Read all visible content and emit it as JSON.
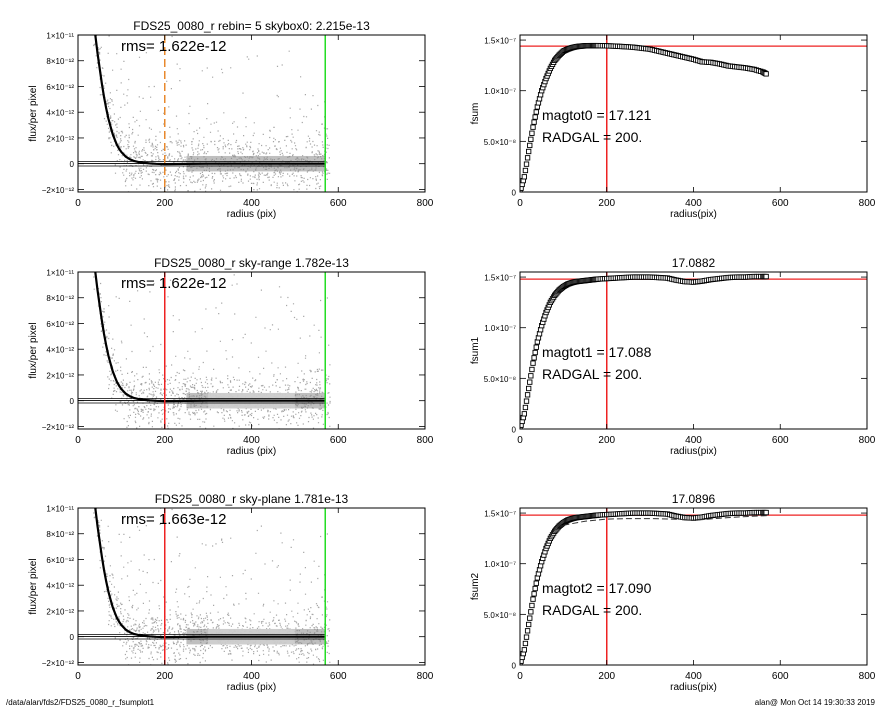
{
  "chart_data": [
    {
      "type": "scatter",
      "title": "FDS25_0080_r rebin= 5    skybox0:  2.215e-13",
      "xlabel": "radius (pix)",
      "ylabel": "flux/per pixel",
      "xlim": [
        0,
        800
      ],
      "ylim": [
        -2.2e-12,
        1e-11
      ],
      "xticks": [
        0,
        200,
        400,
        600,
        800
      ],
      "xticklabels": [
        "0",
        "200",
        "400",
        "600",
        "800"
      ],
      "yticks": [
        -2e-12,
        0,
        2e-12,
        4e-12,
        6e-12,
        8e-12,
        1e-11
      ],
      "yticklabels": [
        "−2×10⁻¹²",
        "0",
        "2×10⁻¹²",
        "4×10⁻¹²",
        "6×10⁻¹²",
        "8×10⁻¹²",
        "1×10⁻¹¹"
      ],
      "annotations": [
        "rms= 1.622e-12"
      ],
      "vlines": [
        {
          "x": 200,
          "color": "#e8892d",
          "style": "dashed"
        },
        {
          "x": 570,
          "color": "#22dd22",
          "style": "solid"
        }
      ],
      "hlines": [
        1.8e-13,
        1e-14,
        -1.8e-13
      ],
      "profile": {
        "x": [
          40,
          45,
          50,
          55,
          60,
          65,
          70,
          75,
          80,
          85,
          90,
          95,
          100,
          110,
          120,
          130,
          140,
          150,
          165,
          180,
          200,
          250,
          300,
          400,
          500,
          570
        ],
        "y": [
          1e-11,
          8.6e-12,
          7.4e-12,
          6.2e-12,
          5.2e-12,
          4.3e-12,
          3.5e-12,
          2.9e-12,
          2.3e-12,
          1.85e-12,
          1.45e-12,
          1.15e-12,
          9e-13,
          5.5e-13,
          3.3e-13,
          2e-13,
          1.2e-13,
          7e-14,
          2e-14,
          -1e-14,
          -3e-14,
          -2e-14,
          0,
          0,
          0,
          0
        ]
      }
    },
    {
      "type": "line",
      "title": "",
      "xlabel": "radius(pix)",
      "ylabel": "fsum",
      "xlim": [
        0,
        800
      ],
      "ylim": [
        0,
        1.55e-07
      ],
      "xticks": [
        0,
        200,
        400,
        600,
        800
      ],
      "xticklabels": [
        "0",
        "200",
        "400",
        "600",
        "800"
      ],
      "yticks": [
        0,
        5e-08,
        1e-07,
        1.5e-07
      ],
      "yticklabels": [
        "0",
        "5.0×10⁻⁸",
        "1.0×10⁻⁷",
        "1.5×10⁻⁷"
      ],
      "annotations": [
        "magtot0 =  17.121",
        "RADGAL =    200."
      ],
      "vlines": [
        {
          "x": 200,
          "color": "#ee2222",
          "style": "solid"
        }
      ],
      "hlines": [
        {
          "y": 1.44e-07,
          "color": "#ee2222"
        }
      ],
      "series": [
        {
          "marker": "square",
          "x": [
            0,
            10,
            20,
            30,
            40,
            50,
            60,
            70,
            80,
            90,
            100,
            110,
            120,
            130,
            140,
            150,
            160,
            170,
            180,
            200,
            220,
            240,
            260,
            280,
            300,
            320,
            340,
            360,
            380,
            400,
            420,
            440,
            460,
            480,
            500,
            520,
            540,
            560,
            570
          ],
          "y": [
            0,
            1.5e-08,
            4e-08,
            6.4e-08,
            8.4e-08,
            1e-07,
            1.12e-07,
            1.22e-07,
            1.3e-07,
            1.35e-07,
            1.39e-07,
            1.41e-07,
            1.425e-07,
            1.435e-07,
            1.44e-07,
            1.443e-07,
            1.445e-07,
            1.445e-07,
            1.445e-07,
            1.443e-07,
            1.44e-07,
            1.435e-07,
            1.43e-07,
            1.42e-07,
            1.41e-07,
            1.39e-07,
            1.37e-07,
            1.35e-07,
            1.33e-07,
            1.31e-07,
            1.285e-07,
            1.28e-07,
            1.265e-07,
            1.245e-07,
            1.235e-07,
            1.225e-07,
            1.21e-07,
            1.185e-07,
            1.16e-07
          ]
        }
      ]
    },
    {
      "type": "scatter",
      "title": "FDS25_0080_r sky-range  1.782e-13",
      "xlabel": "radius (pix)",
      "ylabel": "flux/per pixel",
      "xlim": [
        0,
        800
      ],
      "ylim": [
        -2.2e-12,
        1e-11
      ],
      "xticks": [
        0,
        200,
        400,
        600,
        800
      ],
      "xticklabels": [
        "0",
        "200",
        "400",
        "600",
        "800"
      ],
      "yticks": [
        -2e-12,
        0,
        2e-12,
        4e-12,
        6e-12,
        8e-12,
        1e-11
      ],
      "yticklabels": [
        "−2×10⁻¹²",
        "0",
        "2×10⁻¹²",
        "4×10⁻¹²",
        "6×10⁻¹²",
        "8×10⁻¹²",
        "1×10⁻¹¹"
      ],
      "annotations": [
        "rms= 1.622e-12"
      ],
      "sky_band": [
        300,
        500
      ],
      "vlines": [
        {
          "x": 200,
          "color": "#ee2222",
          "style": "solid"
        },
        {
          "x": 570,
          "color": "#22dd22",
          "style": "solid"
        }
      ],
      "hlines": [
        1.8e-13,
        1e-14,
        -1.8e-13
      ],
      "profile": {
        "x": [
          40,
          45,
          50,
          55,
          60,
          65,
          70,
          75,
          80,
          85,
          90,
          95,
          100,
          110,
          120,
          130,
          140,
          150,
          165,
          180,
          200,
          250,
          300,
          400,
          500,
          570
        ],
        "y": [
          1e-11,
          8.6e-12,
          7.4e-12,
          6.2e-12,
          5.2e-12,
          4.3e-12,
          3.5e-12,
          2.9e-12,
          2.3e-12,
          1.85e-12,
          1.45e-12,
          1.15e-12,
          9e-13,
          5.5e-13,
          3.3e-13,
          2e-13,
          1.2e-13,
          7e-14,
          2e-14,
          -1e-14,
          -3e-14,
          -2e-14,
          0,
          0,
          0,
          0
        ]
      }
    },
    {
      "type": "line",
      "title": "17.0882",
      "xlabel": "radius(pix)",
      "ylabel": "fsum1",
      "xlim": [
        0,
        800
      ],
      "ylim": [
        0,
        1.55e-07
      ],
      "xticks": [
        0,
        200,
        400,
        600,
        800
      ],
      "xticklabels": [
        "0",
        "200",
        "400",
        "600",
        "800"
      ],
      "yticks": [
        0,
        5e-08,
        1e-07,
        1.5e-07
      ],
      "yticklabels": [
        "0",
        "5.0×10⁻⁸",
        "1.0×10⁻⁷",
        "1.5×10⁻⁷"
      ],
      "annotations": [
        "magtot1 =  17.088",
        "RADGAL =    200."
      ],
      "vlines": [
        {
          "x": 200,
          "color": "#ee2222",
          "style": "solid"
        }
      ],
      "hlines": [
        {
          "y": 1.48e-07,
          "color": "#ee2222"
        }
      ],
      "series": [
        {
          "marker": "square",
          "x": [
            0,
            10,
            20,
            30,
            40,
            50,
            60,
            70,
            80,
            90,
            100,
            110,
            120,
            130,
            140,
            150,
            160,
            170,
            180,
            200,
            220,
            240,
            260,
            280,
            300,
            320,
            340,
            360,
            380,
            400,
            420,
            440,
            460,
            480,
            500,
            520,
            540,
            560,
            570
          ],
          "y": [
            0,
            1.5e-08,
            4e-08,
            6.5e-08,
            8.6e-08,
            1.02e-07,
            1.15e-07,
            1.25e-07,
            1.32e-07,
            1.37e-07,
            1.405e-07,
            1.43e-07,
            1.445e-07,
            1.455e-07,
            1.46e-07,
            1.465e-07,
            1.47e-07,
            1.475e-07,
            1.48e-07,
            1.485e-07,
            1.49e-07,
            1.495e-07,
            1.5e-07,
            1.5e-07,
            1.5e-07,
            1.495e-07,
            1.49e-07,
            1.47e-07,
            1.455e-07,
            1.45e-07,
            1.46e-07,
            1.475e-07,
            1.485e-07,
            1.495e-07,
            1.5e-07,
            1.5e-07,
            1.505e-07,
            1.505e-07,
            1.505e-07
          ]
        }
      ]
    },
    {
      "type": "scatter",
      "title": "FDS25_0080_r sky-plane  1.781e-13",
      "xlabel": "radius (pix)",
      "ylabel": "flux/per pixel",
      "xlim": [
        0,
        800
      ],
      "ylim": [
        -2.2e-12,
        1e-11
      ],
      "xticks": [
        0,
        200,
        400,
        600,
        800
      ],
      "xticklabels": [
        "0",
        "200",
        "400",
        "600",
        "800"
      ],
      "yticks": [
        -2e-12,
        0,
        2e-12,
        4e-12,
        6e-12,
        8e-12,
        1e-11
      ],
      "yticklabels": [
        "−2×10⁻¹²",
        "0",
        "2×10⁻¹²",
        "4×10⁻¹²",
        "6×10⁻¹²",
        "8×10⁻¹²",
        "1×10⁻¹¹"
      ],
      "annotations": [
        "rms= 1.663e-12"
      ],
      "sky_band": [
        300,
        500
      ],
      "vlines": [
        {
          "x": 200,
          "color": "#ee2222",
          "style": "solid"
        },
        {
          "x": 570,
          "color": "#22dd22",
          "style": "solid"
        }
      ],
      "hlines": [
        1.8e-13,
        1e-14,
        -1.8e-13
      ],
      "profile": {
        "x": [
          40,
          45,
          50,
          55,
          60,
          65,
          70,
          75,
          80,
          85,
          90,
          95,
          100,
          110,
          120,
          130,
          140,
          150,
          165,
          180,
          200,
          250,
          300,
          400,
          500,
          570
        ],
        "y": [
          1e-11,
          8.6e-12,
          7.4e-12,
          6.2e-12,
          5.2e-12,
          4.3e-12,
          3.5e-12,
          2.9e-12,
          2.3e-12,
          1.85e-12,
          1.45e-12,
          1.15e-12,
          9e-13,
          5.5e-13,
          3.3e-13,
          2e-13,
          1.2e-13,
          7e-14,
          2e-14,
          -1e-14,
          -3e-14,
          -2e-14,
          0,
          0,
          0,
          0
        ]
      }
    },
    {
      "type": "line",
      "title": "17.0896",
      "xlabel": "radius(pix)",
      "ylabel": "fsum2",
      "xlim": [
        0,
        800
      ],
      "ylim": [
        0,
        1.55e-07
      ],
      "xticks": [
        0,
        200,
        400,
        600,
        800
      ],
      "xticklabels": [
        "0",
        "200",
        "400",
        "600",
        "800"
      ],
      "yticks": [
        0,
        5e-08,
        1e-07,
        1.5e-07
      ],
      "yticklabels": [
        "0",
        "5.0×10⁻⁸",
        "1.0×10⁻⁷",
        "1.5×10⁻⁷"
      ],
      "annotations": [
        "magtot2 =  17.090",
        "RADGAL =    200."
      ],
      "vlines": [
        {
          "x": 200,
          "color": "#ee2222",
          "style": "solid"
        }
      ],
      "hlines": [
        {
          "y": 1.48e-07,
          "color": "#ee2222"
        }
      ],
      "series": [
        {
          "marker": "square",
          "x": [
            0,
            10,
            20,
            30,
            40,
            50,
            60,
            70,
            80,
            90,
            100,
            110,
            120,
            130,
            140,
            150,
            160,
            170,
            180,
            200,
            220,
            240,
            260,
            280,
            300,
            320,
            340,
            360,
            380,
            400,
            420,
            440,
            460,
            480,
            500,
            520,
            540,
            560,
            570
          ],
          "y": [
            0,
            1.5e-08,
            4e-08,
            6.5e-08,
            8.6e-08,
            1.02e-07,
            1.15e-07,
            1.25e-07,
            1.32e-07,
            1.37e-07,
            1.405e-07,
            1.43e-07,
            1.445e-07,
            1.455e-07,
            1.46e-07,
            1.465e-07,
            1.47e-07,
            1.475e-07,
            1.48e-07,
            1.485e-07,
            1.49e-07,
            1.495e-07,
            1.5e-07,
            1.5e-07,
            1.5e-07,
            1.495e-07,
            1.49e-07,
            1.47e-07,
            1.455e-07,
            1.45e-07,
            1.46e-07,
            1.475e-07,
            1.485e-07,
            1.495e-07,
            1.5e-07,
            1.5e-07,
            1.505e-07,
            1.505e-07,
            1.505e-07
          ]
        },
        {
          "marker": "none",
          "dash": true,
          "x": [
            100,
            150,
            200,
            250,
            300,
            350,
            380,
            400,
            420,
            450,
            480,
            520,
            570
          ],
          "y": [
            1.38e-07,
            1.42e-07,
            1.44e-07,
            1.445e-07,
            1.445e-07,
            1.44e-07,
            1.435e-07,
            1.43e-07,
            1.435e-07,
            1.445e-07,
            1.455e-07,
            1.465e-07,
            1.475e-07
          ]
        }
      ]
    }
  ],
  "footer": {
    "left": "/data/alan/fds2/FDS25_0080_r_fsumplot1",
    "right": "alan@  Mon Oct 14 19:30:33 2019"
  },
  "colors": {
    "red": "#ee2222",
    "green": "#22dd22",
    "orange": "#e8892d",
    "scatter": "#8a8a8a",
    "sky_band": "#c8c8c8"
  }
}
